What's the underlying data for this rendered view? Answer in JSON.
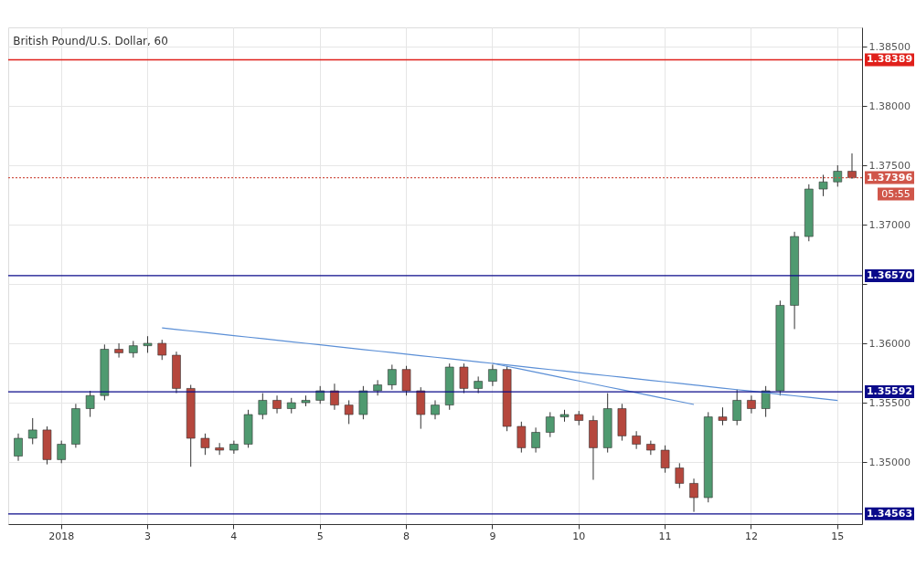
{
  "chart_data": {
    "type": "candlestick",
    "title": "British Pound/U.S. Dollar, 60",
    "categories": [
      null,
      null,
      null,
      "2018",
      null,
      null,
      null,
      null,
      null,
      "3",
      null,
      null,
      null,
      null,
      null,
      "4",
      null,
      null,
      null,
      null,
      null,
      "5",
      null,
      null,
      null,
      null,
      null,
      "8",
      null,
      null,
      null,
      null,
      null,
      "9",
      null,
      null,
      null,
      null,
      null,
      "10",
      null,
      null,
      null,
      null,
      null,
      "11",
      null,
      null,
      null,
      null,
      null,
      "12",
      null,
      null,
      null,
      null,
      null,
      "15",
      null
    ],
    "ohlc": [
      [
        1.3505,
        1.3524,
        1.3501,
        1.352
      ],
      [
        1.352,
        1.3537,
        1.3515,
        1.3527
      ],
      [
        1.3527,
        1.353,
        1.3498,
        1.3502
      ],
      [
        1.3502,
        1.3518,
        1.3499,
        1.3515
      ],
      [
        1.3515,
        1.3549,
        1.3512,
        1.3545
      ],
      [
        1.3545,
        1.356,
        1.3538,
        1.3556
      ],
      [
        1.3556,
        1.3599,
        1.3552,
        1.3595
      ],
      [
        1.3595,
        1.36,
        1.3588,
        1.3592
      ],
      [
        1.3592,
        1.3602,
        1.3588,
        1.3598
      ],
      [
        1.3598,
        1.3606,
        1.3592,
        1.36
      ],
      [
        1.36,
        1.3603,
        1.3586,
        1.359
      ],
      [
        1.359,
        1.3593,
        1.3558,
        1.3562
      ],
      [
        1.3562,
        1.3565,
        1.3496,
        1.352
      ],
      [
        1.352,
        1.3524,
        1.3506,
        1.3512
      ],
      [
        1.3512,
        1.3516,
        1.3506,
        1.351
      ],
      [
        1.351,
        1.3518,
        1.3507,
        1.3515
      ],
      [
        1.3515,
        1.3544,
        1.3512,
        1.354
      ],
      [
        1.354,
        1.3558,
        1.3536,
        1.3552
      ],
      [
        1.3552,
        1.3556,
        1.3541,
        1.3545
      ],
      [
        1.3545,
        1.3554,
        1.3541,
        1.355
      ],
      [
        1.355,
        1.3556,
        1.3547,
        1.3552
      ],
      [
        1.3552,
        1.3564,
        1.3549,
        1.356
      ],
      [
        1.356,
        1.3566,
        1.3544,
        1.3548
      ],
      [
        1.3548,
        1.3552,
        1.3532,
        1.354
      ],
      [
        1.354,
        1.3564,
        1.3536,
        1.356
      ],
      [
        1.356,
        1.3569,
        1.3556,
        1.3565
      ],
      [
        1.3565,
        1.3582,
        1.3561,
        1.3578
      ],
      [
        1.3578,
        1.3581,
        1.3556,
        1.356
      ],
      [
        1.356,
        1.3563,
        1.3528,
        1.354
      ],
      [
        1.354,
        1.3552,
        1.3536,
        1.3548
      ],
      [
        1.3548,
        1.3583,
        1.3544,
        1.358
      ],
      [
        1.358,
        1.3583,
        1.3558,
        1.3562
      ],
      [
        1.3562,
        1.3572,
        1.3558,
        1.3568
      ],
      [
        1.3568,
        1.3582,
        1.3564,
        1.3578
      ],
      [
        1.3578,
        1.3581,
        1.3526,
        1.353
      ],
      [
        1.353,
        1.3534,
        1.3508,
        1.3512
      ],
      [
        1.3512,
        1.3529,
        1.3508,
        1.3525
      ],
      [
        1.3525,
        1.3542,
        1.3521,
        1.3538
      ],
      [
        1.3538,
        1.3544,
        1.3534,
        1.354
      ],
      [
        1.354,
        1.3543,
        1.3531,
        1.3535
      ],
      [
        1.3535,
        1.3539,
        1.3485,
        1.3512
      ],
      [
        1.3512,
        1.3558,
        1.3508,
        1.3545
      ],
      [
        1.3545,
        1.3549,
        1.3518,
        1.3522
      ],
      [
        1.3522,
        1.3526,
        1.3511,
        1.3515
      ],
      [
        1.3515,
        1.3518,
        1.3506,
        1.351
      ],
      [
        1.351,
        1.3514,
        1.3491,
        1.3495
      ],
      [
        1.3495,
        1.3499,
        1.3478,
        1.3482
      ],
      [
        1.3482,
        1.3486,
        1.3458,
        1.347
      ],
      [
        1.347,
        1.3542,
        1.3466,
        1.3538
      ],
      [
        1.3538,
        1.3546,
        1.3531,
        1.3535
      ],
      [
        1.3535,
        1.3561,
        1.3531,
        1.3552
      ],
      [
        1.3552,
        1.3556,
        1.3541,
        1.3545
      ],
      [
        1.3545,
        1.3564,
        1.3538,
        1.356
      ],
      [
        1.356,
        1.3636,
        1.3556,
        1.3632
      ],
      [
        1.3632,
        1.3694,
        1.3612,
        1.369
      ],
      [
        1.369,
        1.3734,
        1.3686,
        1.373
      ],
      [
        1.373,
        1.3742,
        1.3724,
        1.3736
      ],
      [
        1.3736,
        1.375,
        1.3732,
        1.3745
      ],
      [
        1.3745,
        1.376,
        1.37386,
        1.37396
      ]
    ],
    "series": [
      {
        "type": "line",
        "color": "#5b8fd6",
        "values": [
          null,
          null,
          null,
          null,
          null,
          null,
          null,
          null,
          null,
          null,
          1.3613,
          1.36117,
          1.36104,
          1.36091,
          1.36078,
          1.36065,
          1.36052,
          1.36039,
          1.36026,
          1.36013,
          1.36,
          1.35987,
          1.35974,
          1.35961,
          1.35948,
          1.35935,
          1.35922,
          1.35909,
          1.35896,
          1.35883,
          1.3587,
          1.35857,
          1.35844,
          1.35831,
          1.35818,
          1.35805,
          1.35792,
          1.35779,
          1.35766,
          1.35753,
          1.3574,
          1.35727,
          1.35714,
          1.35701,
          1.35688,
          1.35675,
          1.35662,
          1.35649,
          1.35636,
          1.35623,
          1.3561,
          1.35597,
          1.35584,
          1.35571,
          1.35558,
          1.35545,
          1.35532,
          1.35519,
          null
        ]
      },
      {
        "type": "line",
        "color": "#5b8fd6",
        "values": [
          null,
          null,
          null,
          null,
          null,
          null,
          null,
          null,
          null,
          null,
          null,
          null,
          null,
          null,
          null,
          null,
          null,
          null,
          null,
          null,
          null,
          null,
          null,
          null,
          null,
          null,
          null,
          null,
          null,
          null,
          null,
          null,
          null,
          1.35831,
          1.35806,
          1.35782,
          1.35757,
          1.35732,
          1.35707,
          1.35683,
          1.35658,
          1.35633,
          1.35609,
          1.35584,
          1.35559,
          1.35534,
          1.3551,
          1.35485,
          null,
          null,
          null,
          null,
          null,
          null,
          null,
          null,
          null,
          null,
          null
        ]
      }
    ],
    "ylim": [
      1.34477,
      1.38662
    ],
    "yticks": [
      {
        "value": 1.35,
        "label": "1.35000"
      },
      {
        "value": 1.355,
        "label": "1.35500"
      },
      {
        "value": 1.36,
        "label": "1.36000"
      },
      {
        "value": 1.365,
        "label": null
      },
      {
        "value": 1.37,
        "label": "1.37000"
      },
      {
        "value": 1.375,
        "label": "1.37500"
      },
      {
        "value": 1.38,
        "label": "1.38000"
      },
      {
        "value": 1.385,
        "label": "1.38500"
      }
    ],
    "ref_lines": [
      {
        "axis": "y",
        "value": 1.38389,
        "label": "1.38389",
        "color": "#e0201b"
      },
      {
        "axis": "y",
        "value": 1.37396,
        "label": "1.37396",
        "color": "#d0564a",
        "line_style": "dotted"
      },
      {
        "axis": "y",
        "value": 1.3657,
        "label": "1.36570",
        "color": "#0a0a8a"
      },
      {
        "axis": "y",
        "value": 1.35592,
        "label": "1.35592",
        "color": "#0a0a8a"
      },
      {
        "axis": "y",
        "value": 1.34563,
        "label": "1.34563",
        "color": "#0a0a8a"
      }
    ],
    "annotations": [
      "05:55"
    ],
    "grid": true
  }
}
